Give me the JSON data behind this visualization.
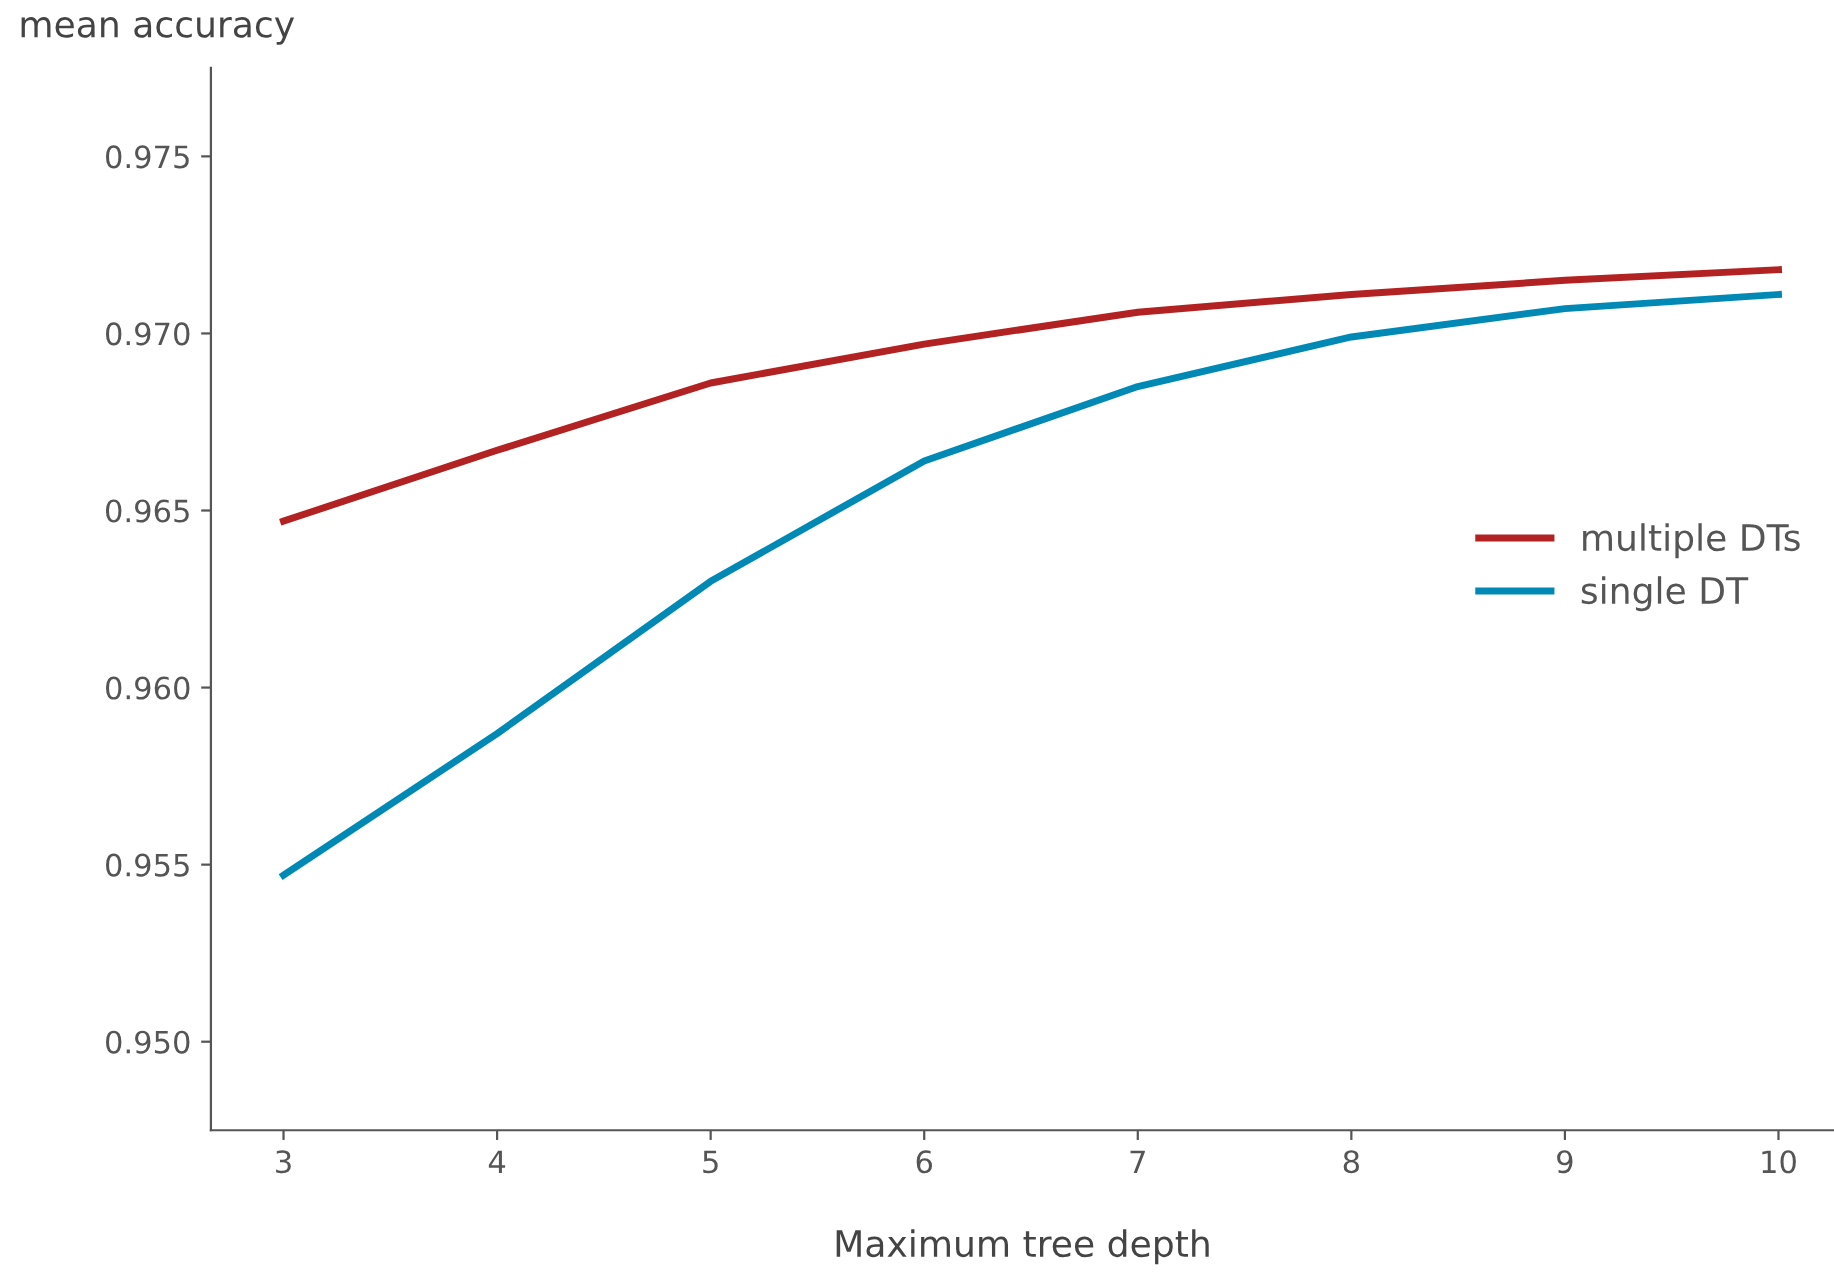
{
  "chart_data": {
    "type": "line",
    "xlabel": "Maximum tree depth",
    "ylabel": "mean accuracy",
    "x": [
      3,
      4,
      5,
      6,
      7,
      8,
      9,
      10
    ],
    "series": [
      {
        "name": "multiple DTs",
        "color": "#b22222",
        "values": [
          0.9647,
          0.9667,
          0.9686,
          0.9697,
          0.9706,
          0.9711,
          0.9715,
          0.9718
        ]
      },
      {
        "name": "single DT",
        "color": "#0089b5",
        "values": [
          0.9547,
          0.9587,
          0.963,
          0.9664,
          0.9685,
          0.9699,
          0.9707,
          0.9711
        ]
      }
    ],
    "xlim": [
      2.66,
      10.26
    ],
    "ylim": [
      0.9475,
      0.9775
    ],
    "xticks": [
      3,
      4,
      5,
      6,
      7,
      8,
      9,
      10
    ],
    "yticks": [
      {
        "value": 0.95,
        "label": "0.950"
      },
      {
        "value": 0.955,
        "label": "0.955"
      },
      {
        "value": 0.96,
        "label": "0.960"
      },
      {
        "value": 0.965,
        "label": "0.965"
      },
      {
        "value": 0.97,
        "label": "0.970"
      },
      {
        "value": 0.975,
        "label": "0.975"
      }
    ],
    "grid": false,
    "legend": "right",
    "marker": "none",
    "line_style": "solid"
  }
}
